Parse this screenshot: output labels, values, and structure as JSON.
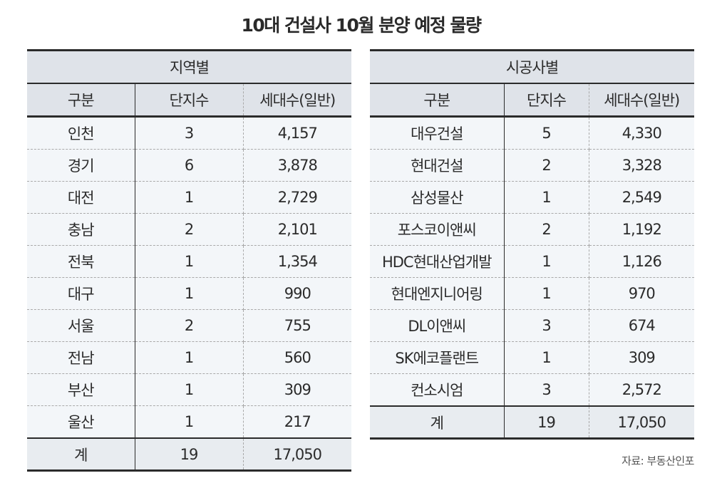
{
  "title": "10대 건설사 10월 분양 예정 물량",
  "source": "자료: 부동산인포",
  "region_table": {
    "group_header": "지역별",
    "columns": [
      "구분",
      "단지수",
      "세대수(일반)"
    ],
    "rows": [
      [
        "인천",
        "3",
        "4,157"
      ],
      [
        "경기",
        "6",
        "3,878"
      ],
      [
        "대전",
        "1",
        "2,729"
      ],
      [
        "충남",
        "2",
        "2,101"
      ],
      [
        "전북",
        "1",
        "1,354"
      ],
      [
        "대구",
        "1",
        "990"
      ],
      [
        "서울",
        "2",
        "755"
      ],
      [
        "전남",
        "1",
        "560"
      ],
      [
        "부산",
        "1",
        "309"
      ],
      [
        "울산",
        "1",
        "217"
      ]
    ],
    "total": [
      "계",
      "19",
      "17,050"
    ]
  },
  "builder_table": {
    "group_header": "시공사별",
    "columns": [
      "구분",
      "단지수",
      "세대수(일반)"
    ],
    "rows": [
      [
        "대우건설",
        "5",
        "4,330"
      ],
      [
        "현대건설",
        "2",
        "3,328"
      ],
      [
        "삼성물산",
        "1",
        "2,549"
      ],
      [
        "포스코이앤씨",
        "2",
        "1,192"
      ],
      [
        "HDC현대산업개발",
        "1",
        "1,126"
      ],
      [
        "현대엔지니어링",
        "1",
        "970"
      ],
      [
        "DL이앤씨",
        "3",
        "674"
      ],
      [
        "SK에코플랜트",
        "1",
        "309"
      ],
      [
        "컨소시엄",
        "3",
        "2,572"
      ]
    ],
    "total": [
      "계",
      "19",
      "17,050"
    ]
  },
  "colors": {
    "header_bg": "#dfe3e9",
    "row_bg": "#f3f6f9",
    "total_bg": "#e8ecf0",
    "rule": "#2b2b2b"
  }
}
